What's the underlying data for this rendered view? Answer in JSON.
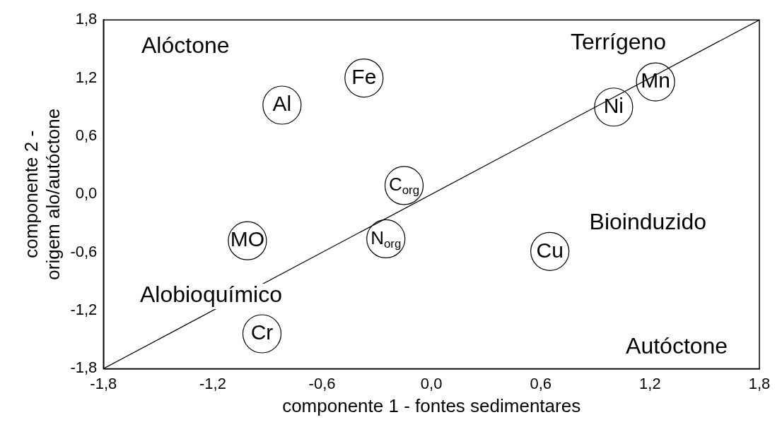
{
  "chart_data": {
    "type": "scatter",
    "xlabel": "componente 1 - fontes sedimentares",
    "ylabel": "componente 2 - origem alo/autóctone",
    "xlim": [
      -1.8,
      1.8
    ],
    "ylim": [
      -1.8,
      1.8
    ],
    "xticks": [
      {
        "value": -1.8,
        "label": "-1,8"
      },
      {
        "value": -1.2,
        "label": "-1,2"
      },
      {
        "value": -0.6,
        "label": "-0,6"
      },
      {
        "value": 0,
        "label": "0,0"
      },
      {
        "value": 0.6,
        "label": "0,6"
      },
      {
        "value": 1.2,
        "label": "1,2"
      },
      {
        "value": 1.8,
        "label": "1,8"
      }
    ],
    "yticks": [
      {
        "value": -1.8,
        "label": "-1,8"
      },
      {
        "value": -1.2,
        "label": "-1,2"
      },
      {
        "value": -0.6,
        "label": "-0,6"
      },
      {
        "value": 0,
        "label": "0,0"
      },
      {
        "value": 0.6,
        "label": "0,6"
      },
      {
        "value": 1.2,
        "label": "1,2"
      },
      {
        "value": 1.8,
        "label": "1,8"
      }
    ],
    "grid": false,
    "legend": false,
    "marker": "circle",
    "series": [
      {
        "type": "line",
        "color": "#000000",
        "x": [
          -1.8,
          1.8
        ],
        "values": [
          -1.8,
          1.8
        ],
        "marker": "none"
      },
      {
        "type": "scatter",
        "color": "#000000",
        "x": [
          -0.37,
          -0.82,
          1.23,
          1.0,
          -0.15,
          -0.25,
          -1.01,
          0.65,
          -0.93
        ],
        "values": [
          1.2,
          0.92,
          1.16,
          0.9,
          0.09,
          -0.46,
          -0.48,
          -0.59,
          -1.44
        ],
        "value_labels": [
          "Fe",
          "Al",
          "Mn",
          "Ni",
          "C$_{org}$",
          "N$_{org}$",
          "MO",
          "Cu",
          "Cr"
        ]
      }
    ],
    "annotations": [
      "Alóctone",
      "Terrígeno",
      "Bioinduzido",
      "Alobioquímico",
      "Autóctone"
    ]
  }
}
